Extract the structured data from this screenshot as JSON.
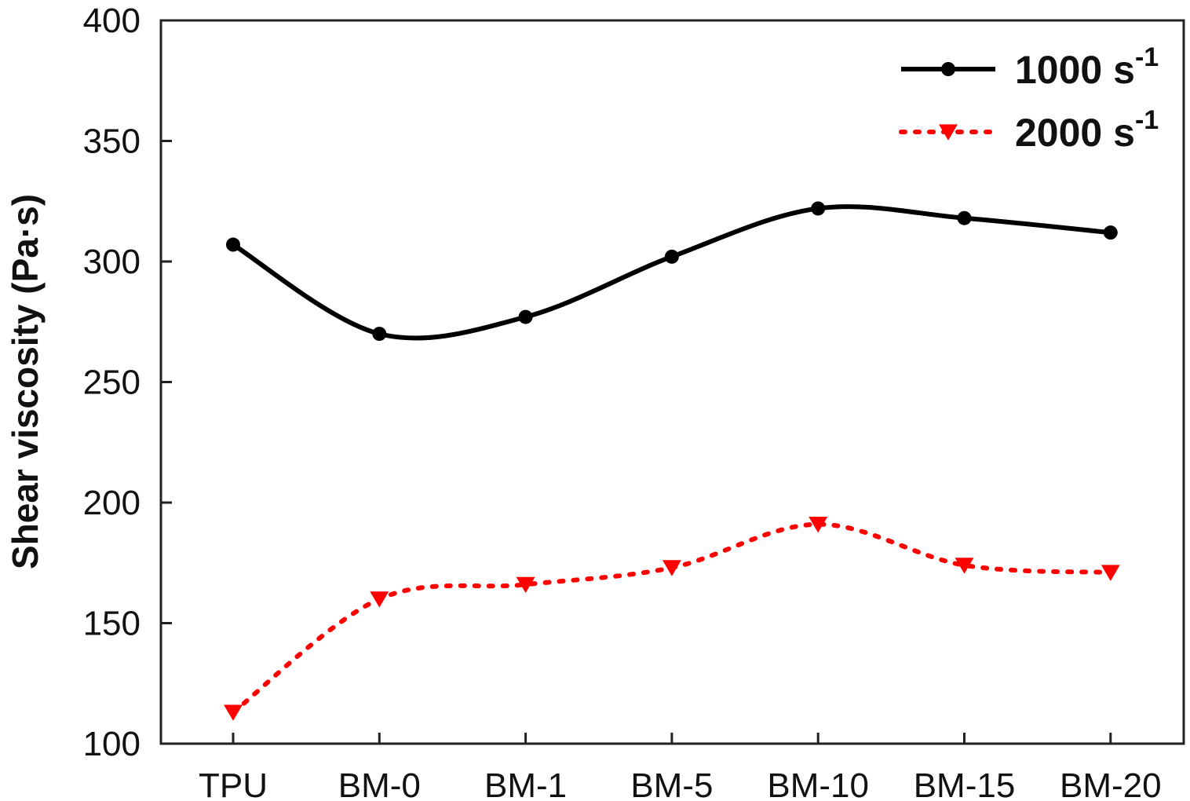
{
  "chart_data": {
    "type": "line",
    "title": "",
    "xlabel": "",
    "ylabel": "Shear viscosity (Pa·s)",
    "ylim": [
      100,
      400
    ],
    "yticks": [
      100,
      150,
      200,
      250,
      300,
      350,
      400
    ],
    "categories": [
      "TPU",
      "BM-0",
      "BM-1",
      "BM-5",
      "BM-10",
      "BM-15",
      "BM-20"
    ],
    "grid": false,
    "legend_position": "top-right",
    "series": [
      {
        "name": "1000 s",
        "name_sup": "-1",
        "values": [
          307,
          270,
          277,
          302,
          322,
          318,
          312
        ],
        "color": "#000000",
        "style": "solid",
        "marker": "circle"
      },
      {
        "name": "2000 s",
        "name_sup": "-1",
        "values": [
          113,
          160,
          166,
          173,
          191,
          174,
          171
        ],
        "color": "#ff0000",
        "style": "dotted",
        "marker": "triangle-down"
      }
    ]
  }
}
